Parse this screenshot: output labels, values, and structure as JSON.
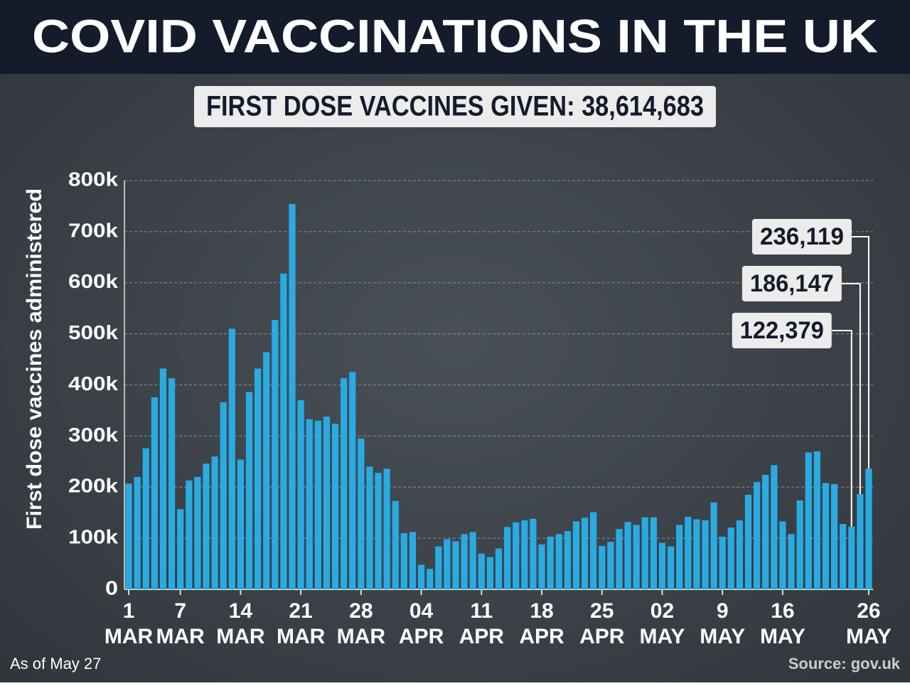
{
  "chart_data": {
    "type": "bar",
    "title": "COVID VACCINATIONS IN THE UK",
    "subtitle": "FIRST DOSE VACCINES GIVEN: 38,614,683",
    "y_label": "First dose vaccines administered",
    "note": "As of May 27",
    "source": "Source: gov.uk",
    "color": "#29abe2",
    "grid": true,
    "ylim": [
      0,
      800000
    ],
    "yticks": [
      0,
      {
        "value": 100000,
        "label": "100k"
      },
      {
        "value": 200000,
        "label": "200k"
      },
      {
        "value": 300000,
        "label": "300k"
      },
      {
        "value": 400000,
        "label": "400k"
      },
      {
        "value": 500000,
        "label": "500k"
      },
      {
        "value": 600000,
        "label": "600k"
      },
      {
        "value": 700000,
        "label": "700k"
      },
      {
        "value": 800000,
        "label": "800k"
      }
    ],
    "categories": [
      "1 MAR",
      null,
      null,
      null,
      null,
      null,
      "7 MAR",
      null,
      null,
      null,
      null,
      null,
      null,
      "14 MAR",
      null,
      null,
      null,
      null,
      null,
      null,
      "21 MAR",
      null,
      null,
      null,
      null,
      null,
      null,
      "28 MAR",
      null,
      null,
      null,
      null,
      null,
      null,
      "04 APR",
      null,
      null,
      null,
      null,
      null,
      null,
      "11 APR",
      null,
      null,
      null,
      null,
      null,
      null,
      "18 APR",
      null,
      null,
      null,
      null,
      null,
      null,
      "25 APR",
      null,
      null,
      null,
      null,
      null,
      null,
      "02 MAY",
      null,
      null,
      null,
      null,
      null,
      null,
      "9 MAY",
      null,
      null,
      null,
      null,
      null,
      null,
      "16 MAY",
      null,
      null,
      null,
      null,
      null,
      null,
      null,
      null,
      null,
      "26 MAY"
    ],
    "values": [
      207000,
      220000,
      276000,
      376000,
      432000,
      413000,
      157000,
      213000,
      220000,
      246000,
      260000,
      366000,
      510000,
      254000,
      386000,
      432000,
      464000,
      527000,
      618000,
      754000,
      370000,
      333000,
      330000,
      338000,
      324000,
      413000,
      425000,
      295000,
      240000,
      228000,
      236000,
      173000,
      110000,
      112000,
      48000,
      40000,
      84000,
      98000,
      94000,
      108000,
      112000,
      70000,
      63000,
      80000,
      122000,
      131000,
      135000,
      138000,
      88000,
      103000,
      108000,
      114000,
      133000,
      140000,
      151000,
      85000,
      93000,
      118000,
      132000,
      126000,
      141000,
      141000,
      91000,
      84000,
      126000,
      142000,
      137000,
      135000,
      170000,
      103000,
      121000,
      135000,
      185000,
      210000,
      224000,
      243000,
      133000,
      108000,
      174000,
      268000,
      270000,
      208000,
      206000,
      128000,
      122379,
      186147,
      236119
    ],
    "value_labels": [
      null,
      null,
      null,
      null,
      null,
      null,
      null,
      null,
      null,
      null,
      null,
      null,
      null,
      null,
      null,
      null,
      null,
      null,
      null,
      null,
      null,
      null,
      null,
      null,
      null,
      null,
      null,
      null,
      null,
      null,
      null,
      null,
      null,
      null,
      null,
      null,
      null,
      null,
      null,
      null,
      null,
      null,
      null,
      null,
      null,
      null,
      null,
      null,
      null,
      null,
      null,
      null,
      null,
      null,
      null,
      null,
      null,
      null,
      null,
      null,
      null,
      null,
      null,
      null,
      null,
      null,
      null,
      null,
      null,
      null,
      null,
      null,
      null,
      null,
      null,
      null,
      null,
      null,
      null,
      null,
      null,
      null,
      null,
      null,
      "122,379",
      "186,147",
      "236,119"
    ]
  }
}
